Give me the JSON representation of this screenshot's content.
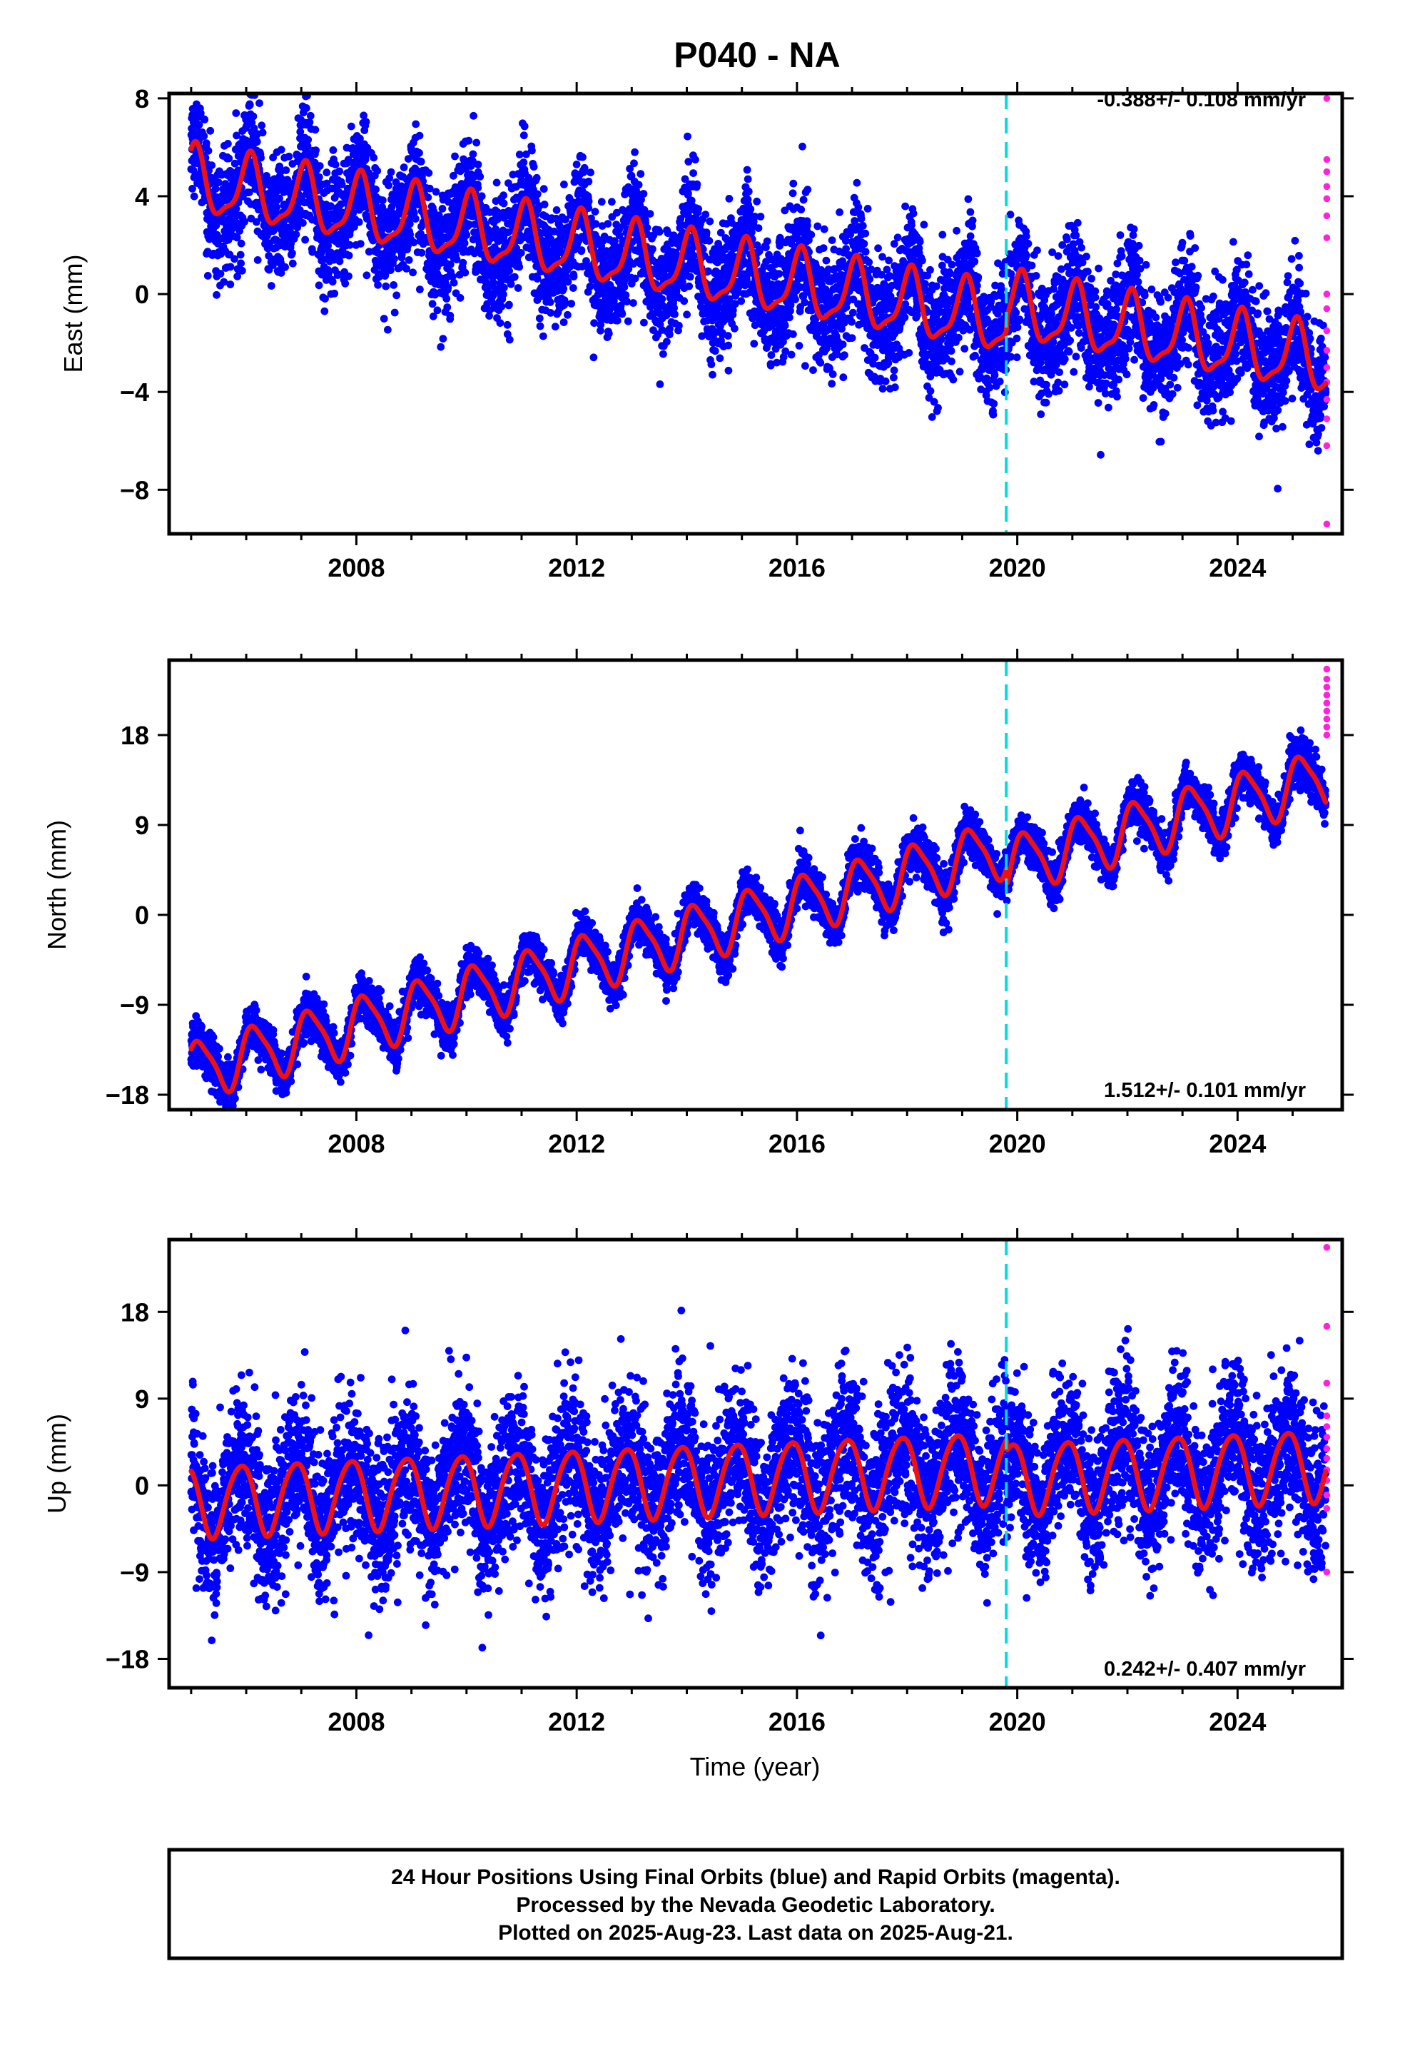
{
  "title": "P040 - NA",
  "xlabel": "Time (year)",
  "footer": [
    "24 Hour Positions Using Final Orbits (blue) and Rapid Orbits (magenta).",
    "Processed by the Nevada Geodetic Laboratory.",
    "Plotted on 2025-Aug-23. Last data on 2025-Aug-21."
  ],
  "colors": {
    "final_orbits": "#0000ff",
    "rapid_orbits": "#ff22dd",
    "model_fit": "#ee1111",
    "equipment_change": "#00dddd",
    "frame": "#000000"
  },
  "chart_data": [
    {
      "type": "scatter",
      "component": "east",
      "ylabel": "East (mm)",
      "rate_text": "-0.388+/- 0.108 mm/yr",
      "xlim": [
        2004.6,
        2025.9
      ],
      "ylim": [
        -9.8,
        8.2
      ],
      "xticks": [
        2008,
        2012,
        2016,
        2020,
        2024
      ],
      "yticks": [
        -8,
        -4,
        0,
        4,
        8
      ],
      "grid": false,
      "discontinuity_x": 2019.8,
      "data_start": 2005.0,
      "data_end": 2025.6,
      "fit": {
        "offset": 4.6,
        "ref_year": 2005.0,
        "velocity": -0.388,
        "annual_amplitude": 1.3,
        "annual_phase": 1.2,
        "semiannual_amplitude": 0.4,
        "semiannual_phase": 0.3,
        "step_at_discontinuity": 0.6
      },
      "scatter_sd": 1.25,
      "n_points": 7000,
      "rapid_points": [
        8.0,
        5.5,
        5.0,
        4.4,
        3.9,
        3.2,
        2.3,
        0.0,
        -0.6,
        -1.5,
        -2.3,
        -3.0,
        -3.6,
        -4.3,
        -5.1,
        -6.2,
        -9.4
      ]
    },
    {
      "type": "scatter",
      "component": "north",
      "ylabel": "North (mm)",
      "rate_text": "1.512+/- 0.101 mm/yr",
      "xlim": [
        2004.6,
        2025.9
      ],
      "ylim": [
        -19.5,
        25.5
      ],
      "xticks": [
        2008,
        2012,
        2016,
        2020,
        2024
      ],
      "yticks": [
        -18,
        -9,
        0,
        9,
        18
      ],
      "grid": false,
      "discontinuity_x": 2019.8,
      "data_start": 2005.0,
      "data_end": 2025.6,
      "fit": {
        "offset": -15.6,
        "ref_year": 2005.0,
        "velocity": 1.512,
        "annual_amplitude": 2.8,
        "annual_phase": 0.6,
        "semiannual_amplitude": 0.6,
        "semiannual_phase": 1.6,
        "step_at_discontinuity": -1.8
      },
      "scatter_sd": 1.1,
      "n_points": 7000,
      "rapid_points": [
        24.6,
        23.6,
        22.8,
        22.0,
        21.2,
        20.4,
        19.6,
        18.8,
        18.0
      ]
    },
    {
      "type": "scatter",
      "component": "up",
      "ylabel": "Up (mm)",
      "rate_text": "0.242+/- 0.407 mm/yr",
      "xlim": [
        2004.6,
        2025.9
      ],
      "ylim": [
        -21.0,
        25.5
      ],
      "xticks": [
        2008,
        2012,
        2016,
        2020,
        2024
      ],
      "yticks": [
        -18,
        -9,
        0,
        9,
        18
      ],
      "grid": false,
      "discontinuity_x": 2019.8,
      "data_start": 2005.0,
      "data_end": 2025.6,
      "fit": {
        "offset": -1.6,
        "ref_year": 2005.0,
        "velocity": 0.242,
        "annual_amplitude": 3.7,
        "annual_phase": 2.2,
        "semiannual_amplitude": 0.4,
        "semiannual_phase": 0.2,
        "step_at_discontinuity": -1.2
      },
      "scatter_sd": 4.0,
      "n_points": 7000,
      "rapid_points": [
        24.7,
        16.5,
        10.6,
        7.2,
        6.1,
        5.0,
        3.8,
        2.8,
        1.6,
        0.5,
        -1.0,
        -2.4,
        -9.0
      ]
    }
  ]
}
